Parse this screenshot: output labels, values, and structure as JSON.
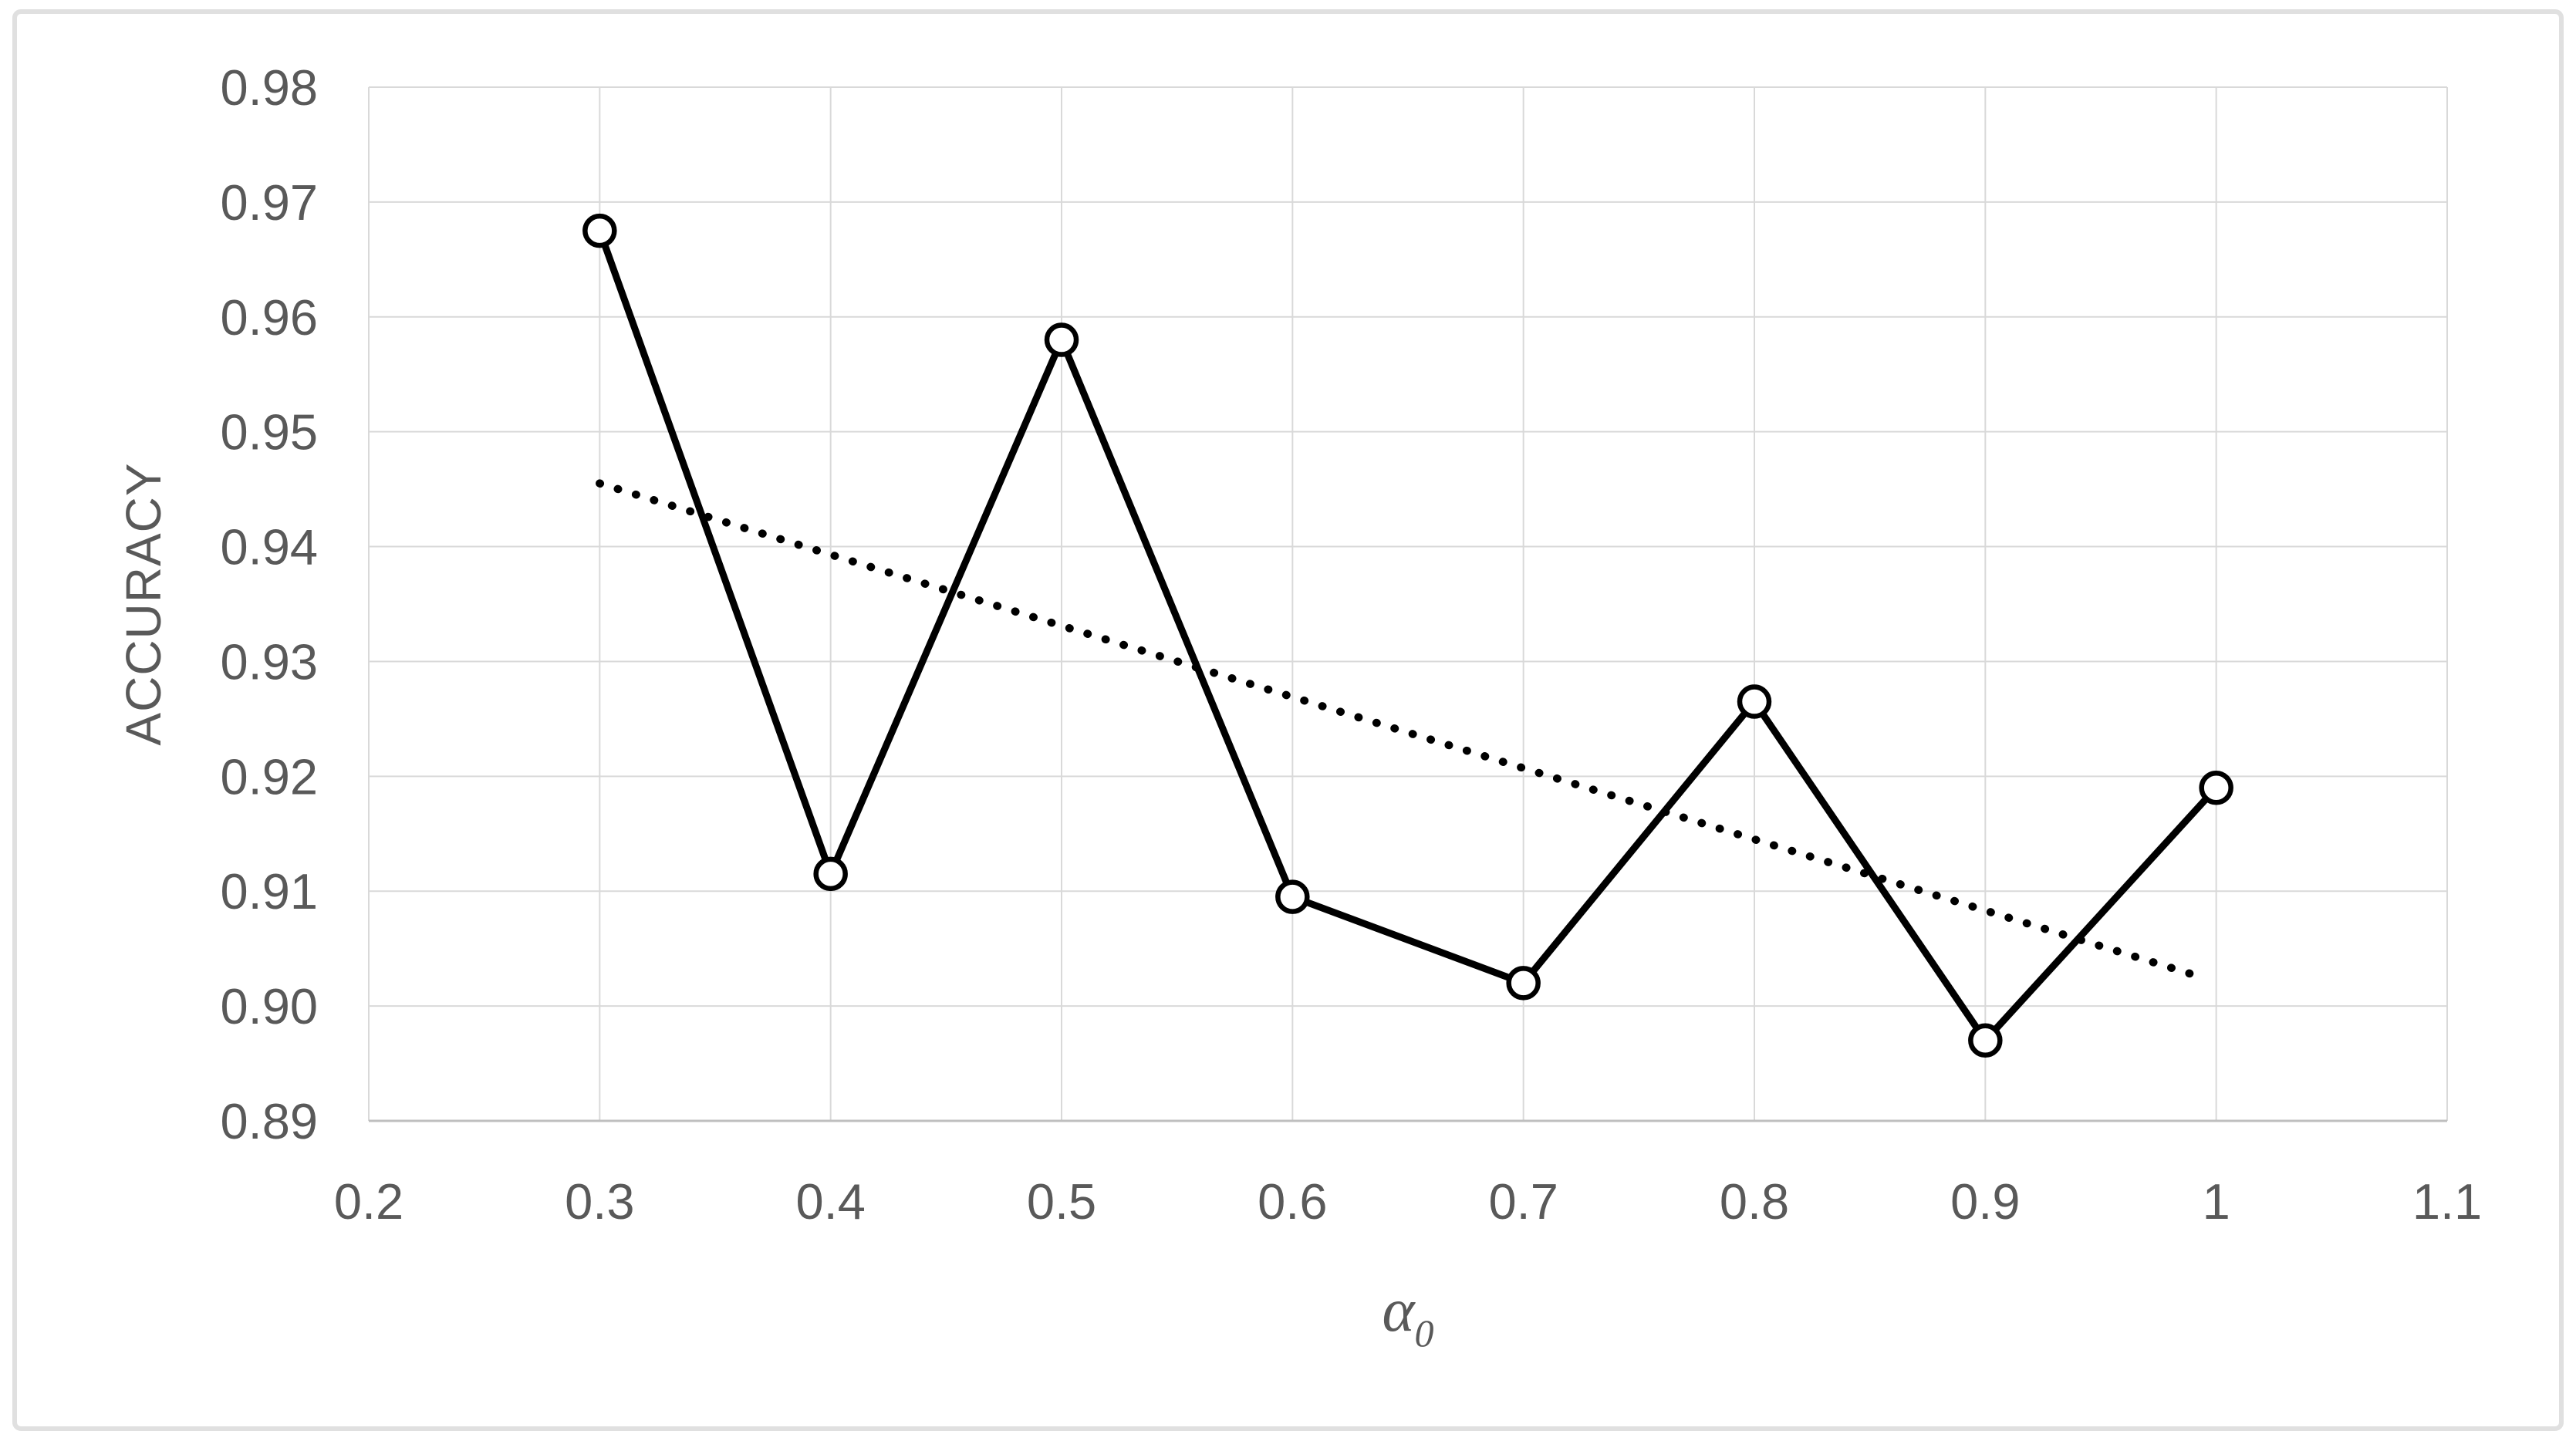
{
  "figure": {
    "background": "#FFFFFF",
    "border_color": "#E0E0E0"
  },
  "chart_data": {
    "type": "line",
    "title": "",
    "ylabel": "ACCURACY",
    "xlabel_symbol": "α",
    "xlabel_subscript": "0",
    "xlim": [
      0.2,
      1.1
    ],
    "ylim": [
      0.89,
      0.98
    ],
    "grid": true,
    "legend": "none",
    "x_ticks": [
      {
        "value": 0.2,
        "label": "0.2"
      },
      {
        "value": 0.3,
        "label": "0.3"
      },
      {
        "value": 0.4,
        "label": "0.4"
      },
      {
        "value": 0.5,
        "label": "0.5"
      },
      {
        "value": 0.6,
        "label": "0.6"
      },
      {
        "value": 0.7,
        "label": "0.7"
      },
      {
        "value": 0.8,
        "label": "0.8"
      },
      {
        "value": 0.9,
        "label": "0.9"
      },
      {
        "value": 1.0,
        "label": "1"
      },
      {
        "value": 1.1,
        "label": "1.1"
      }
    ],
    "y_ticks": [
      {
        "value": 0.89,
        "label": "0.89"
      },
      {
        "value": 0.9,
        "label": "0.90"
      },
      {
        "value": 0.91,
        "label": "0.91"
      },
      {
        "value": 0.92,
        "label": "0.92"
      },
      {
        "value": 0.93,
        "label": "0.93"
      },
      {
        "value": 0.94,
        "label": "0.94"
      },
      {
        "value": 0.95,
        "label": "0.95"
      },
      {
        "value": 0.96,
        "label": "0.96"
      },
      {
        "value": 0.97,
        "label": "0.97"
      },
      {
        "value": 0.98,
        "label": "0.98"
      }
    ],
    "x": [
      0.3,
      0.4,
      0.5,
      0.6,
      0.7,
      0.8,
      0.9,
      1.0
    ],
    "series": [
      {
        "name": "accuracy",
        "marker": "open-circle",
        "values": [
          0.9675,
          0.9115,
          0.958,
          0.9095,
          0.902,
          0.9265,
          0.897,
          0.919
        ]
      }
    ],
    "trendline": {
      "type": "linear",
      "style": "dotted",
      "start": {
        "x": 0.3,
        "y": 0.9455
      },
      "end": {
        "x": 1.0,
        "y": 0.9025
      }
    },
    "colors": {
      "series_line": "#000000",
      "marker_fill": "#FFFFFF",
      "trendline": "#000000",
      "gridline": "#D9D9D9",
      "axis_line": "#BFBFBF",
      "tick_label": "#595959",
      "axis_title": "#595959"
    }
  }
}
